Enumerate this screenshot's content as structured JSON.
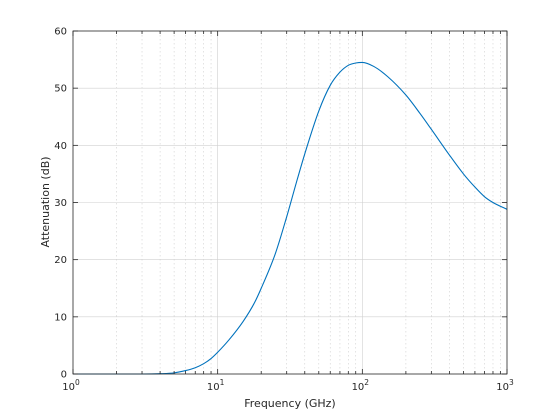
{
  "chart_data": {
    "type": "line",
    "title": "",
    "xlabel": "Frequency (GHz)",
    "ylabel": "Attenuation (dB)",
    "xscale": "log",
    "xlim": [
      1,
      1000
    ],
    "ylim": [
      0,
      60
    ],
    "grid": true,
    "x_ticks": [
      {
        "value": 1,
        "base": "10",
        "exp": "0"
      },
      {
        "value": 10,
        "base": "10",
        "exp": "1"
      },
      {
        "value": 100,
        "base": "10",
        "exp": "2"
      },
      {
        "value": 1000,
        "base": "10",
        "exp": "3"
      }
    ],
    "y_ticks": [
      "0",
      "10",
      "20",
      "30",
      "40",
      "50",
      "60"
    ],
    "series": [
      {
        "color": "#0072bd",
        "x": [
          1,
          2,
          3,
          4,
          5,
          6,
          7,
          8,
          9,
          10,
          12,
          15,
          18,
          20,
          25,
          30,
          35,
          40,
          50,
          60,
          70,
          80,
          90,
          100,
          120,
          150,
          200,
          250,
          300,
          400,
          500,
          600,
          700,
          800,
          1000
        ],
        "y": [
          0,
          0,
          0,
          0.05,
          0.2,
          0.6,
          1.1,
          1.8,
          2.7,
          3.8,
          6.0,
          9.2,
          12.5,
          15.0,
          21.0,
          27.5,
          33.5,
          38.5,
          46.0,
          50.5,
          52.8,
          54.0,
          54.4,
          54.5,
          53.8,
          52.0,
          48.8,
          45.6,
          42.8,
          38.3,
          35.0,
          32.7,
          31.0,
          30.0,
          28.8
        ]
      }
    ]
  }
}
